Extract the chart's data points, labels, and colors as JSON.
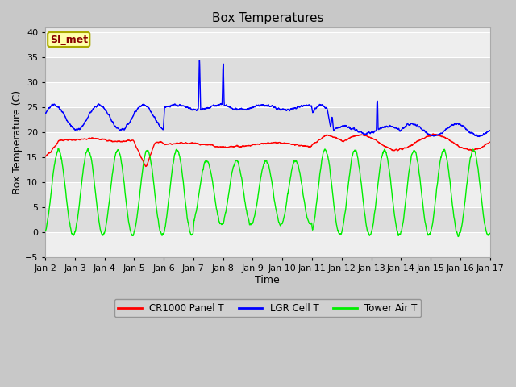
{
  "title": "Box Temperatures",
  "xlabel": "Time",
  "ylabel": "Box Temperature (C)",
  "ylim": [
    -5,
    41
  ],
  "yticks": [
    -5,
    0,
    5,
    10,
    15,
    20,
    25,
    30,
    35,
    40
  ],
  "x_tick_labels": [
    "Jan 2",
    "Jan 3",
    "Jan 4",
    "Jan 5",
    "Jan 6",
    "Jan 7",
    "Jan 8",
    "Jan 9",
    "Jan 10",
    "Jan 11",
    "Jan 12",
    "Jan 13",
    "Jan 14",
    "Jan 15",
    "Jan 16",
    "Jan 17"
  ],
  "colors": {
    "cr1000": "#ff0000",
    "lgr": "#0000ff",
    "tower": "#00ee00",
    "fig_bg": "#c8c8c8",
    "plot_bg": "#e8e8e8",
    "band_light": "#eeeeee",
    "band_dark": "#dddddd",
    "grid": "#ffffff",
    "annotation_bg": "#ffffaa",
    "annotation_border": "#aaaa00"
  },
  "annotation_text": "SI_met",
  "legend": {
    "cr1000": "CR1000 Panel T",
    "lgr": "LGR Cell T",
    "tower": "Tower Air T"
  },
  "linewidth": 1.0
}
